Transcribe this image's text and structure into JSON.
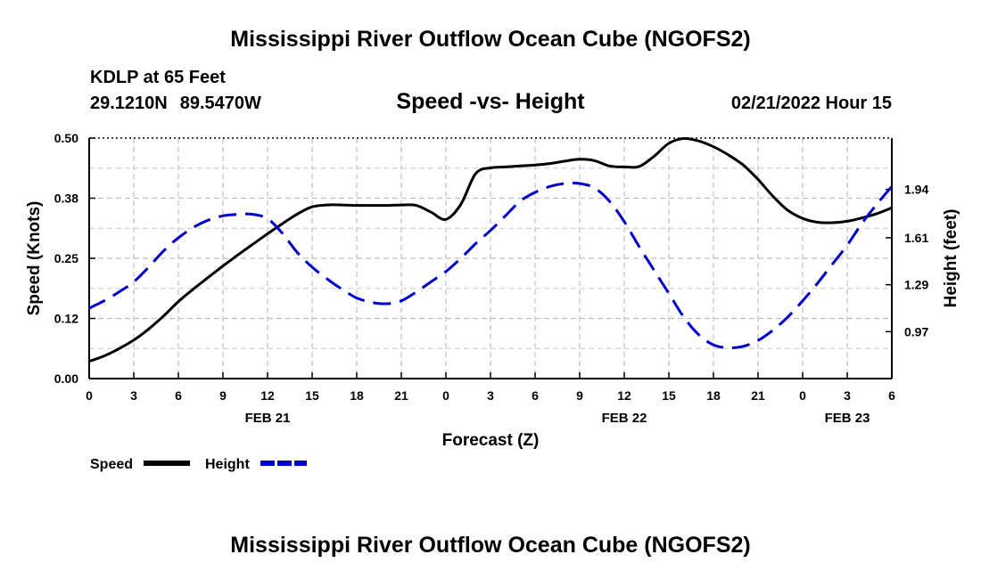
{
  "header": {
    "title": "Mississippi River Outflow Ocean Cube (NGOFS2)",
    "location": "KDLP at 65 Feet",
    "lat": "29.1210N",
    "lon": "89.5470W",
    "subtitle": "Speed -vs- Height",
    "datetime": "02/21/2022 Hour 15"
  },
  "footer": {
    "title": "Mississippi River Outflow Ocean Cube (NGOFS2)"
  },
  "chart_data": {
    "type": "line",
    "xlabel": "Forecast (Z)",
    "ylabel_left": "Speed (Knots)",
    "ylabel_right": "Height (feet)",
    "x_range_hours": [
      0,
      54
    ],
    "x_tick_labels": [
      "0",
      "3",
      "6",
      "9",
      "12",
      "15",
      "18",
      "21",
      "0",
      "3",
      "6",
      "9",
      "12",
      "15",
      "18",
      "21",
      "0",
      "3",
      "6"
    ],
    "day_labels": [
      {
        "label": "FEB 21",
        "hour": 12
      },
      {
        "label": "FEB 22",
        "hour": 36
      },
      {
        "label": "FEB 23",
        "hour": 51
      }
    ],
    "y_left_range": [
      0,
      0.5
    ],
    "y_left_ticks": [
      "0.00",
      "0.12",
      "0.25",
      "0.38",
      "0.50"
    ],
    "y_right_range": [
      0.65,
      2.29
    ],
    "y_right_ticks": [
      "0.97",
      "1.29",
      "1.61",
      "1.94"
    ],
    "grid": true,
    "legend_position": "bottom-left",
    "series": [
      {
        "name": "Speed",
        "axis": "left",
        "color": "#000000",
        "style": "solid",
        "x": [
          0,
          1,
          2,
          3,
          4,
          5,
          6,
          7,
          8,
          9,
          10,
          11,
          12,
          13,
          14,
          15,
          16,
          17,
          18,
          19,
          20,
          21,
          22,
          23,
          24,
          25,
          26,
          27,
          28,
          29,
          30,
          31,
          32,
          33,
          34,
          35,
          36,
          37,
          38,
          39,
          40,
          41,
          42,
          43,
          44,
          45,
          46,
          47,
          48,
          49,
          50,
          51,
          52,
          53,
          54
        ],
        "values": [
          0.036,
          0.047,
          0.062,
          0.08,
          0.103,
          0.13,
          0.16,
          0.186,
          0.21,
          0.234,
          0.257,
          0.279,
          0.301,
          0.322,
          0.342,
          0.357,
          0.361,
          0.361,
          0.36,
          0.36,
          0.36,
          0.361,
          0.36,
          0.346,
          0.331,
          0.362,
          0.426,
          0.438,
          0.44,
          0.442,
          0.444,
          0.447,
          0.452,
          0.456,
          0.453,
          0.442,
          0.44,
          0.441,
          0.462,
          0.489,
          0.499,
          0.494,
          0.482,
          0.465,
          0.444,
          0.414,
          0.379,
          0.35,
          0.333,
          0.325,
          0.324,
          0.327,
          0.334,
          0.343,
          0.355
        ]
      },
      {
        "name": "Height",
        "axis": "right",
        "color": "#0000cc",
        "style": "dashed",
        "x": [
          0,
          1,
          2,
          3,
          4,
          5,
          6,
          7,
          8,
          9,
          10,
          11,
          12,
          13,
          14,
          15,
          16,
          17,
          18,
          19,
          20,
          21,
          22,
          23,
          24,
          25,
          26,
          27,
          28,
          29,
          30,
          31,
          32,
          33,
          34,
          35,
          36,
          37,
          38,
          39,
          40,
          41,
          42,
          43,
          44,
          45,
          46,
          47,
          48,
          49,
          50,
          51,
          52,
          53,
          54
        ],
        "values": [
          1.13,
          1.18,
          1.24,
          1.31,
          1.41,
          1.52,
          1.61,
          1.68,
          1.73,
          1.76,
          1.77,
          1.77,
          1.74,
          1.64,
          1.51,
          1.41,
          1.33,
          1.26,
          1.2,
          1.17,
          1.16,
          1.18,
          1.24,
          1.31,
          1.38,
          1.47,
          1.57,
          1.66,
          1.76,
          1.86,
          1.92,
          1.96,
          1.98,
          1.98,
          1.95,
          1.86,
          1.72,
          1.55,
          1.39,
          1.23,
          1.07,
          0.95,
          0.88,
          0.86,
          0.87,
          0.91,
          0.98,
          1.07,
          1.18,
          1.3,
          1.43,
          1.56,
          1.71,
          1.84,
          1.96
        ]
      }
    ],
    "legend": [
      {
        "label": "Speed",
        "color": "#000000",
        "style": "solid"
      },
      {
        "label": "Height",
        "color": "#0000cc",
        "style": "dashed"
      }
    ]
  }
}
